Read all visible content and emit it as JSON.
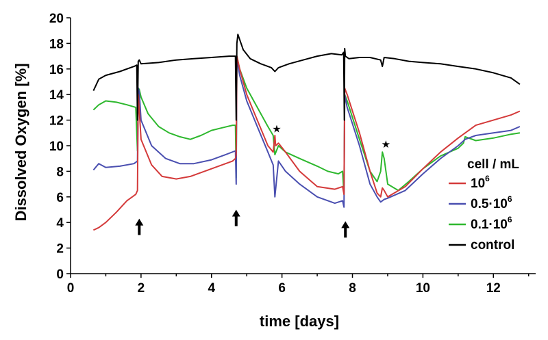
{
  "chart_data": {
    "type": "line",
    "xlabel": "time [days]",
    "ylabel": "Dissolved Oxygen [%]",
    "xlim": [
      0,
      13.2
    ],
    "ylim": [
      0,
      20
    ],
    "xticks": [
      0,
      2,
      4,
      6,
      8,
      10,
      12
    ],
    "yticks": [
      0,
      2,
      4,
      6,
      8,
      10,
      12,
      14,
      16,
      18,
      20
    ],
    "grid": false,
    "legend": {
      "title": "cell / mL",
      "placement": "right",
      "entries": [
        {
          "base": "10",
          "sup": "6",
          "color": "#d43a3a"
        },
        {
          "base": "0.5·10",
          "sup": "6",
          "color": "#4a4fb0"
        },
        {
          "base": "0.1·10",
          "sup": "6",
          "color": "#2eb82e"
        },
        {
          "base": "control",
          "sup": "",
          "color": "#000000"
        }
      ]
    },
    "annotations": [
      {
        "type": "arrow",
        "x": 1.95,
        "y": 4.3
      },
      {
        "type": "arrow",
        "x": 4.7,
        "y": 5.0
      },
      {
        "type": "arrow",
        "x": 7.8,
        "y": 4.1
      },
      {
        "type": "star",
        "x": 5.85,
        "y": 11.3
      },
      {
        "type": "star",
        "x": 8.95,
        "y": 10.1
      }
    ],
    "series": [
      {
        "color": "#2eb82e",
        "x": [
          0.65,
          0.8,
          1.0,
          1.3,
          1.6,
          1.85,
          1.9,
          1.92,
          1.95,
          2.0,
          2.2,
          2.5,
          2.8,
          3.1,
          3.4,
          3.7,
          4.0,
          4.3,
          4.6,
          4.68,
          4.7,
          4.72,
          4.8,
          5.0,
          5.3,
          5.6,
          5.75,
          5.8,
          5.9,
          6.1,
          6.5,
          7.0,
          7.3,
          7.6,
          7.72,
          7.76,
          7.78,
          7.85,
          8.2,
          8.5,
          8.7,
          8.8,
          8.85,
          8.9,
          9.0,
          9.3,
          9.6,
          10.0,
          10.5,
          11.0,
          11.15,
          11.2,
          11.5,
          12.0,
          12.5,
          12.75
        ],
        "y": [
          12.8,
          13.2,
          13.5,
          13.4,
          13.2,
          13.0,
          9.6,
          14.5,
          14.4,
          13.8,
          12.5,
          11.5,
          11.0,
          10.7,
          10.5,
          10.8,
          11.2,
          11.4,
          11.6,
          11.6,
          7.5,
          17.0,
          16.0,
          14.5,
          13.0,
          11.5,
          10.8,
          9.3,
          10.0,
          9.5,
          9.0,
          8.4,
          8.0,
          7.8,
          8.0,
          6.2,
          14.0,
          13.5,
          10.5,
          8.0,
          7.2,
          8.0,
          9.5,
          9.0,
          7.0,
          6.5,
          7.2,
          8.2,
          9.2,
          9.8,
          10.2,
          10.7,
          10.4,
          10.6,
          10.9,
          11.0
        ]
      },
      {
        "color": "#4a4fb0",
        "x": [
          0.65,
          0.8,
          1.0,
          1.4,
          1.8,
          1.9,
          1.92,
          1.95,
          2.0,
          2.3,
          2.7,
          3.1,
          3.5,
          4.0,
          4.4,
          4.68,
          4.7,
          4.72,
          4.8,
          5.0,
          5.3,
          5.6,
          5.75,
          5.8,
          5.9,
          6.1,
          6.5,
          7.0,
          7.5,
          7.72,
          7.76,
          7.78,
          7.85,
          8.2,
          8.5,
          8.7,
          8.8,
          8.85,
          8.9,
          9.0,
          9.5,
          10.0,
          10.5,
          11.0,
          11.2,
          11.5,
          12.0,
          12.5,
          12.75
        ],
        "y": [
          8.1,
          8.6,
          8.3,
          8.4,
          8.6,
          8.8,
          14.5,
          14.2,
          12.0,
          10.0,
          9.0,
          8.6,
          8.6,
          8.9,
          9.3,
          9.6,
          7.0,
          16.8,
          15.5,
          13.5,
          11.5,
          9.5,
          8.5,
          6.0,
          8.8,
          8.0,
          7.0,
          6.0,
          5.5,
          5.7,
          5.2,
          14.0,
          13.0,
          10.0,
          7.0,
          6.0,
          5.6,
          5.7,
          5.8,
          5.9,
          6.5,
          7.8,
          9.0,
          10.0,
          10.5,
          10.8,
          11.0,
          11.2,
          11.5
        ]
      },
      {
        "color": "#d43a3a",
        "x": [
          0.65,
          0.8,
          1.0,
          1.3,
          1.6,
          1.85,
          1.9,
          1.92,
          1.95,
          2.0,
          2.3,
          2.6,
          3.0,
          3.4,
          3.8,
          4.2,
          4.6,
          4.68,
          4.7,
          4.72,
          4.8,
          5.0,
          5.3,
          5.6,
          5.75,
          5.8,
          5.82,
          5.9,
          6.1,
          6.5,
          7.0,
          7.5,
          7.72,
          7.76,
          7.78,
          7.85,
          8.2,
          8.5,
          8.7,
          8.8,
          8.85,
          8.9,
          9.0,
          9.5,
          10.0,
          10.5,
          11.0,
          11.2,
          11.5,
          12.0,
          12.5,
          12.75
        ],
        "y": [
          3.4,
          3.6,
          4.0,
          4.8,
          5.7,
          6.2,
          6.5,
          14.0,
          12.8,
          10.5,
          8.5,
          7.6,
          7.4,
          7.6,
          8.0,
          8.4,
          8.8,
          9.0,
          9.3,
          17.0,
          16.0,
          14.0,
          12.0,
          10.0,
          9.5,
          10.8,
          10.0,
          10.2,
          9.5,
          8.0,
          6.8,
          6.6,
          6.8,
          6.2,
          14.5,
          14.0,
          11.0,
          8.0,
          6.3,
          6.0,
          6.7,
          6.5,
          6.0,
          6.8,
          8.2,
          9.5,
          10.6,
          11.0,
          11.6,
          12.0,
          12.4,
          12.7
        ]
      },
      {
        "color": "#000000",
        "x": [
          0.65,
          0.8,
          1.0,
          1.4,
          1.8,
          1.88,
          1.9,
          1.92,
          1.95,
          2.0,
          2.5,
          3.0,
          3.5,
          4.0,
          4.5,
          4.68,
          4.7,
          4.72,
          4.75,
          4.8,
          4.9,
          5.1,
          5.4,
          5.7,
          5.8,
          5.9,
          6.2,
          6.6,
          7.0,
          7.4,
          7.7,
          7.75,
          7.77,
          7.78,
          7.8,
          7.9,
          8.2,
          8.5,
          8.8,
          8.85,
          8.9,
          9.2,
          9.6,
          10.0,
          10.5,
          11.0,
          11.5,
          12.0,
          12.5,
          12.75
        ],
        "y": [
          14.3,
          15.2,
          15.5,
          15.8,
          16.2,
          16.3,
          12.0,
          16.6,
          16.7,
          16.4,
          16.5,
          16.7,
          16.8,
          16.9,
          17.0,
          17.0,
          12.0,
          18.0,
          18.7,
          18.3,
          17.5,
          16.8,
          16.4,
          16.1,
          15.8,
          16.1,
          16.4,
          16.7,
          17.0,
          17.2,
          17.1,
          17.3,
          12.0,
          17.6,
          17.0,
          16.8,
          16.9,
          16.9,
          16.7,
          16.2,
          16.9,
          16.8,
          16.6,
          16.5,
          16.4,
          16.2,
          16.0,
          15.7,
          15.3,
          14.8
        ]
      }
    ]
  }
}
